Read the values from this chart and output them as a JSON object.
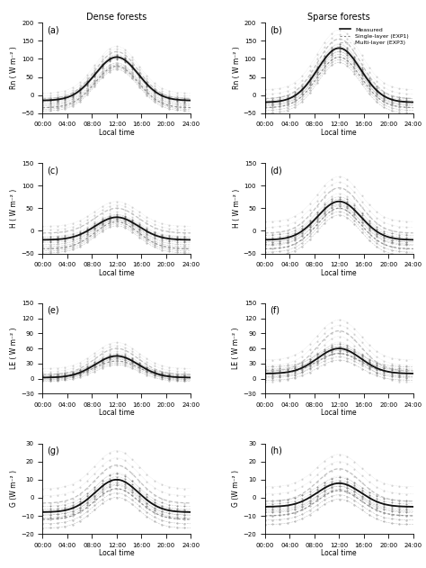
{
  "title_left": "Dense forests",
  "title_right": "Sparse forests",
  "legend_labels": [
    "Measured",
    "Single-layer (EXP1)",
    "Multi-layer (EXP3)"
  ],
  "time_labels": [
    "00:00",
    "04:00",
    "08:00",
    "12:00",
    "16:00",
    "20:00",
    "24:00"
  ],
  "panels": [
    {
      "label": "(a)",
      "ylabel": "Rn ( W m⁻² )",
      "ylim": [
        -50,
        200
      ],
      "yticks": [
        -50,
        0,
        50,
        100,
        150,
        200
      ],
      "measured_peak": 105,
      "exp1_peak": 80,
      "exp3_peak": 120,
      "measured_night": -15,
      "exp1_night": -35,
      "exp3_night": -10,
      "spread": 15
    },
    {
      "label": "(b)",
      "ylabel": "Rn ( W m⁻² )",
      "ylim": [
        -50,
        200
      ],
      "yticks": [
        -50,
        0,
        50,
        100,
        150,
        200
      ],
      "measured_peak": 130,
      "exp1_peak": 105,
      "exp3_peak": 155,
      "measured_night": -20,
      "exp1_night": -35,
      "exp3_night": -10,
      "spread": 25
    },
    {
      "label": "(c)",
      "ylabel": "H ( W m⁻² )",
      "ylim": [
        -50,
        150
      ],
      "yticks": [
        -50,
        0,
        50,
        100,
        150
      ],
      "measured_peak": 30,
      "exp1_peak": 20,
      "exp3_peak": 50,
      "measured_night": -20,
      "exp1_night": -40,
      "exp3_night": -5,
      "spread": 15
    },
    {
      "label": "(d)",
      "ylabel": "H ( W m⁻² )",
      "ylim": [
        -50,
        150
      ],
      "yticks": [
        -50,
        0,
        50,
        100,
        150
      ],
      "measured_peak": 65,
      "exp1_peak": 50,
      "exp3_peak": 95,
      "measured_night": -20,
      "exp1_night": -40,
      "exp3_night": -5,
      "spread": 25
    },
    {
      "label": "(e)",
      "ylabel": "LE ( W m⁻² )",
      "ylim": [
        -30,
        150
      ],
      "yticks": [
        -30,
        0,
        30,
        60,
        90,
        120,
        150
      ],
      "measured_peak": 45,
      "exp1_peak": 35,
      "exp3_peak": 60,
      "measured_night": 2,
      "exp1_night": 2,
      "exp3_night": 8,
      "spread": 12
    },
    {
      "label": "(f)",
      "ylabel": "LE ( W m⁻² )",
      "ylim": [
        -30,
        150
      ],
      "yticks": [
        -30,
        0,
        30,
        60,
        90,
        120,
        150
      ],
      "measured_peak": 60,
      "exp1_peak": 50,
      "exp3_peak": 95,
      "measured_night": 10,
      "exp1_night": 10,
      "exp3_night": 15,
      "spread": 22
    },
    {
      "label": "(g)",
      "ylabel": "G (W m⁻² )",
      "ylim": [
        -20,
        30
      ],
      "yticks": [
        -20,
        -10,
        0,
        10,
        20,
        30
      ],
      "measured_peak": 10,
      "exp1_peak": 5,
      "exp3_peak": 18,
      "measured_night": -8,
      "exp1_night": -12,
      "exp3_night": -3,
      "spread": 8
    },
    {
      "label": "(h)",
      "ylabel": "G (W m⁻² )",
      "ylim": [
        -20,
        30
      ],
      "yticks": [
        -20,
        -10,
        0,
        10,
        20,
        30
      ],
      "measured_peak": 8,
      "exp1_peak": 4,
      "exp3_peak": 16,
      "measured_night": -5,
      "exp1_night": -10,
      "exp3_night": -2,
      "spread": 8
    }
  ],
  "measured_color": "#555555",
  "exp1_color": "#888888",
  "exp3_color": "#bbbbbb",
  "line_color": "#111111",
  "bg_color": "#ffffff"
}
